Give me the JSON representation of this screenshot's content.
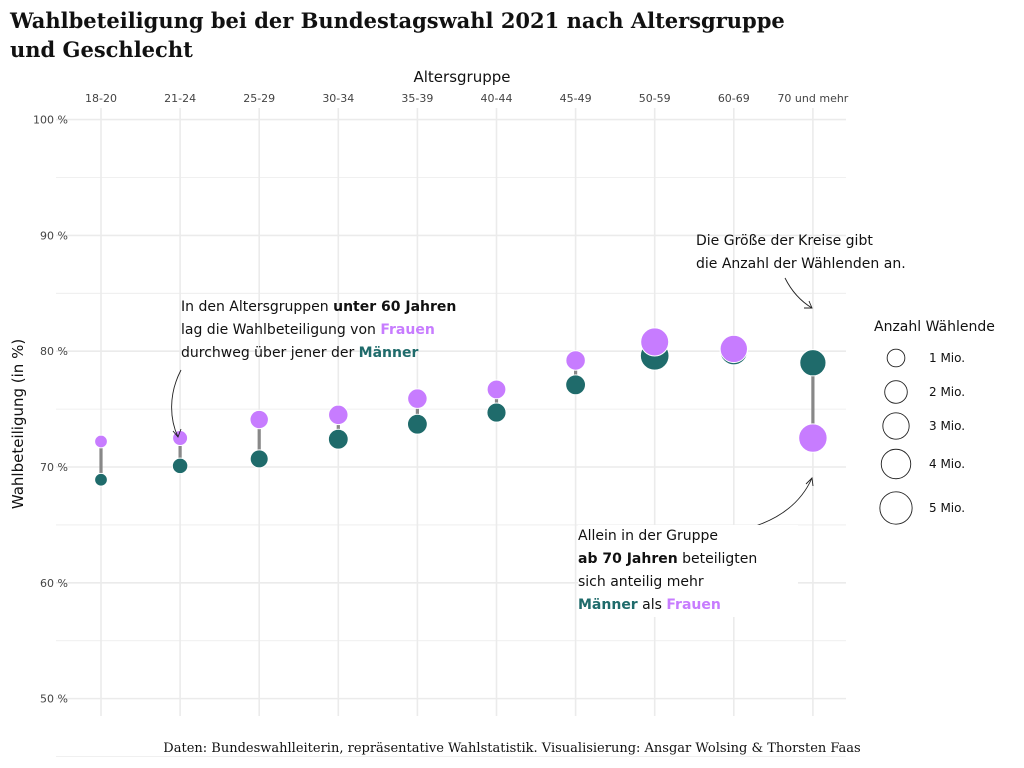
{
  "title": "Wahlbeteiligung bei der Bundestagswahl 2021 nach Altersgruppe und Geschlecht",
  "caption": "Daten: Bundeswahlleiterin, repräsentative Wahlstatistik. Visualisierung: Ansgar Wolsing & Thorsten Faas",
  "colors": {
    "frauen": "#c77cff",
    "maenner": "#1f6b6b",
    "segment": "#888888",
    "grid": "#ebebeb"
  },
  "annotations": {
    "left": {
      "l1a": "In den Altersgruppen ",
      "l1b": "unter 60 Jahren",
      "l2a": "lag die Wahlbeteiligung von ",
      "l2b": "Frauen",
      "l3a": "durchweg über jener der ",
      "l3b": "Männer"
    },
    "top_right": {
      "l1": "Die Größe der Kreise gibt",
      "l2": "die Anzahl der Wählenden an."
    },
    "bottom_right": {
      "l1": "Allein in der Gruppe",
      "l2a": "ab 70 Jahren",
      "l2b": " beteiligten",
      "l3": "sich anteilig mehr",
      "l4a": "Männer",
      "l4b": " als ",
      "l4c": "Frauen"
    }
  },
  "chart_data": {
    "type": "scatter",
    "xlabel": "Altersgruppe",
    "ylabel": "Wahlbeteiligung (in %)",
    "categories": [
      "18-20",
      "21-24",
      "25-29",
      "30-34",
      "35-39",
      "40-44",
      "45-49",
      "50-59",
      "60-69",
      "70 und mehr"
    ],
    "ylim": [
      48.5,
      101
    ],
    "yticks": [
      50,
      60,
      70,
      80,
      90,
      100
    ],
    "ytick_labels": [
      "50 %",
      "60 %",
      "70 %",
      "80 %",
      "90 %",
      "100 %"
    ],
    "series": [
      {
        "name": "Frauen",
        "values": [
          72.2,
          72.5,
          74.1,
          74.5,
          75.9,
          76.7,
          79.2,
          80.8,
          80.2,
          72.5
        ],
        "voters_mio": [
          0.6,
          1.0,
          1.8,
          2.1,
          2.1,
          1.9,
          2.1,
          5.3,
          5.0,
          5.5
        ]
      },
      {
        "name": "Männer",
        "values": [
          68.9,
          70.1,
          70.7,
          72.4,
          73.7,
          74.7,
          77.1,
          79.6,
          80.0,
          79.0
        ],
        "voters_mio": [
          0.6,
          1.1,
          1.7,
          2.2,
          2.2,
          2.0,
          2.2,
          5.6,
          5.0,
          4.5
        ]
      }
    ],
    "size_legend": {
      "title": "Anzahl Wählende",
      "items": [
        {
          "value": 1,
          "label": "1 Mio."
        },
        {
          "value": 2,
          "label": "2 Mio."
        },
        {
          "value": 3,
          "label": "3 Mio."
        },
        {
          "value": 4,
          "label": "4 Mio."
        },
        {
          "value": 5,
          "label": "5 Mio."
        }
      ]
    },
    "grid": true,
    "legend_position": "right"
  }
}
